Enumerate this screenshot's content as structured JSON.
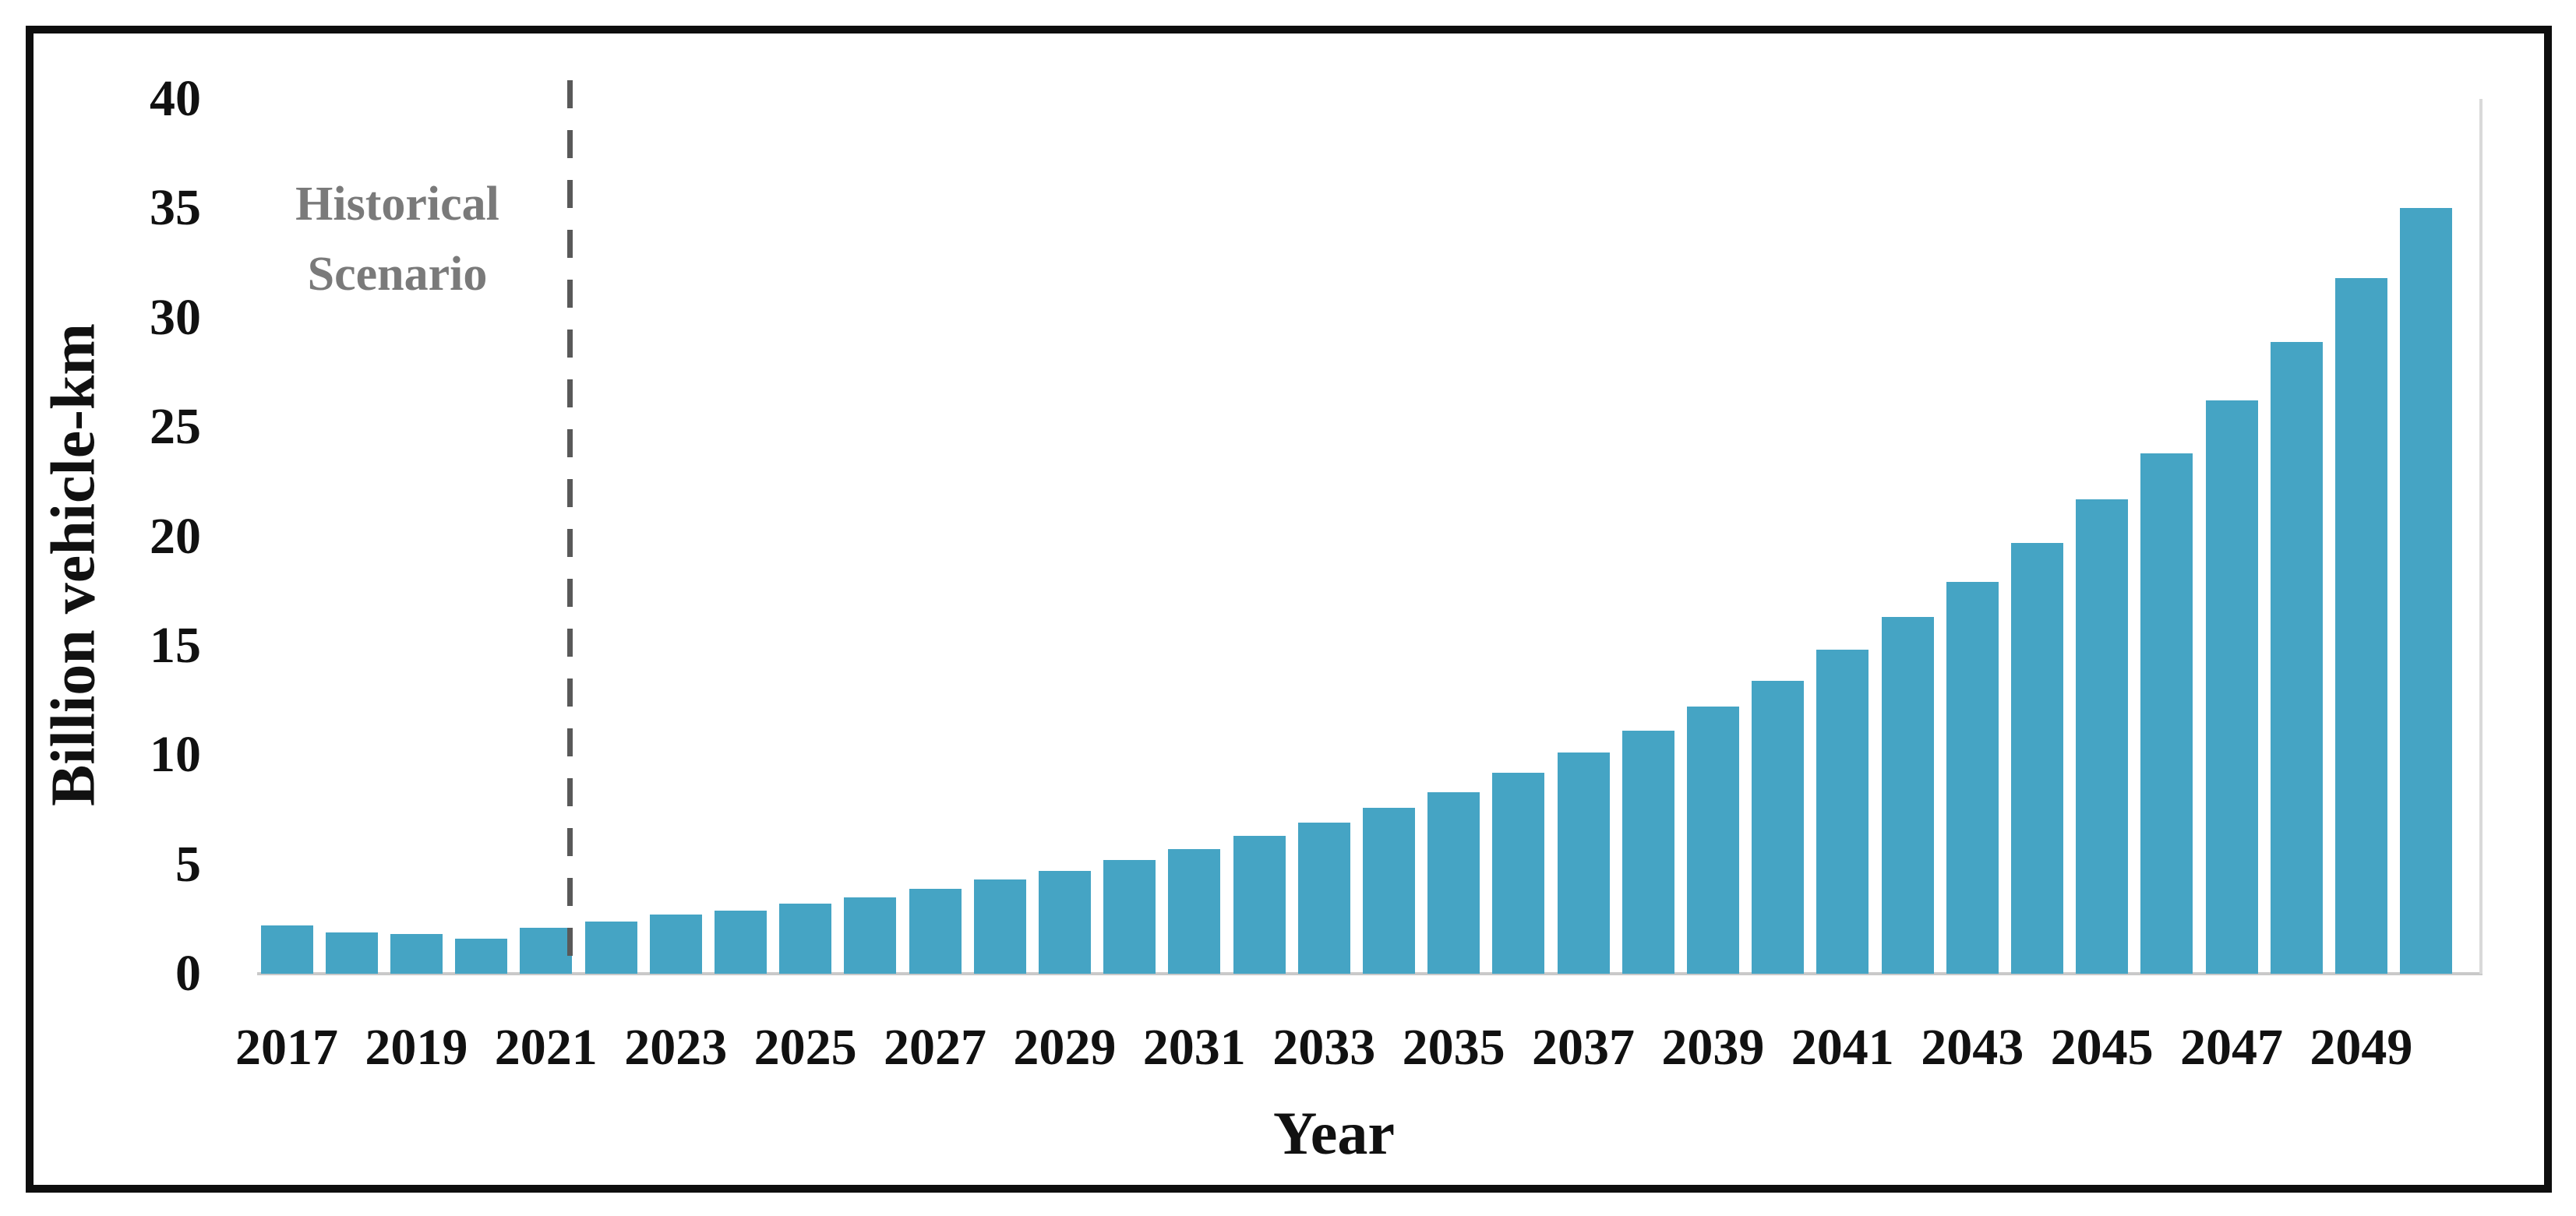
{
  "chart_data": {
    "type": "bar",
    "title": "",
    "xlabel": "Year",
    "ylabel": "Billion vehicle-km",
    "categories": [
      2017,
      2018,
      2019,
      2020,
      2021,
      2022,
      2023,
      2024,
      2025,
      2026,
      2027,
      2028,
      2029,
      2030,
      2031,
      2032,
      2033,
      2034,
      2035,
      2036,
      2037,
      2038,
      2039,
      2040,
      2041,
      2042,
      2043,
      2044,
      2045,
      2046,
      2047,
      2048,
      2049,
      2050
    ],
    "values": [
      2.2,
      1.9,
      1.8,
      1.6,
      2.1,
      2.4,
      2.7,
      2.9,
      3.2,
      3.5,
      3.9,
      4.3,
      4.7,
      5.2,
      5.7,
      6.3,
      6.9,
      7.6,
      8.3,
      9.2,
      10.1,
      11.1,
      12.2,
      13.4,
      14.8,
      16.3,
      17.9,
      19.7,
      21.7,
      23.8,
      26.2,
      28.9,
      31.8,
      35.0
    ],
    "ylim": [
      0,
      40
    ],
    "yticks": [
      0,
      5,
      10,
      15,
      20,
      25,
      30,
      35,
      40
    ],
    "xtick_labels": [
      "2017",
      "2019",
      "2021",
      "2023",
      "2025",
      "2027",
      "2029",
      "2031",
      "2033",
      "2035",
      "2037",
      "2039",
      "2041",
      "2043",
      "2045",
      "2047",
      "2049"
    ],
    "grid": "off",
    "legend": "none",
    "annotation": {
      "line1": "Historical",
      "line2": "Scenario",
      "divider_after_year": 2021
    },
    "colors": {
      "bar_fill": "#45a4c4",
      "annotation_text": "#7a7a7a",
      "divider_dash": "#595959",
      "axis_line": "#c9c9c9",
      "plot_right_border": "#d9d9d9",
      "frame_border": "#0e0e0e",
      "tick_text": "#111111"
    }
  }
}
